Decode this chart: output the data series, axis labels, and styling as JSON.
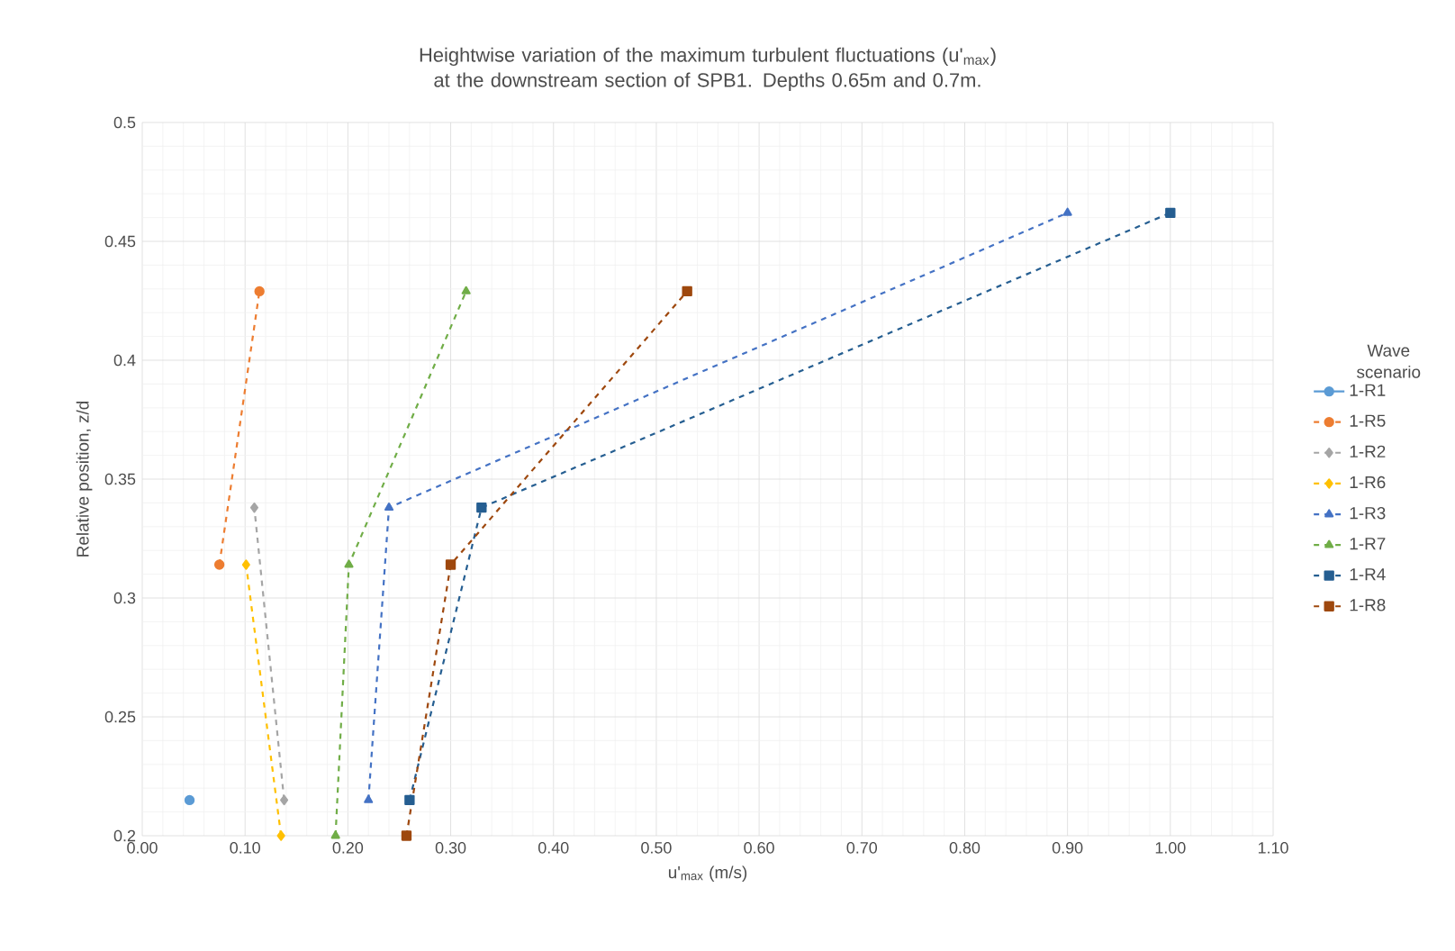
{
  "chart_data": {
    "type": "line",
    "title": "Heightwise variation of the maximum turbulent fluctuations (u'$_{max}$) at the downstream section of SPB1. Depths 0.65m and 0.7m.",
    "xlabel": "u'$_{max}$ (m/s)",
    "ylabel": "Relative position, z/d",
    "legend_title": "Wave scenario",
    "legend": "right",
    "grid": true,
    "xlim": [
      0,
      1.1
    ],
    "ylim": [
      0.2,
      0.5
    ],
    "xticks": [
      {
        "value": 0,
        "label": "0.00"
      },
      {
        "value": 0.1,
        "label": "0.10"
      },
      {
        "value": 0.2,
        "label": "0.20"
      },
      {
        "value": 0.3,
        "label": "0.30"
      },
      {
        "value": 0.4,
        "label": "0.40"
      },
      {
        "value": 0.5,
        "label": "0.50"
      },
      {
        "value": 0.6,
        "label": "0.60"
      },
      {
        "value": 0.7,
        "label": "0.70"
      },
      {
        "value": 0.8,
        "label": "0.80"
      },
      {
        "value": 0.9,
        "label": "0.90"
      },
      {
        "value": 1.0,
        "label": "1.00"
      },
      {
        "value": 1.1,
        "label": "1.10"
      }
    ],
    "yticks": [
      0.2,
      0.25,
      0.3,
      0.35,
      0.4,
      0.45,
      0.5
    ],
    "series": [
      {
        "name": "1-R1",
        "color": "#5b9bd5",
        "marker": "circle",
        "line_style": "solid",
        "x": [
          0.046
        ],
        "values": [
          0.215
        ]
      },
      {
        "name": "1-R5",
        "color": "#ed7d31",
        "marker": "circle",
        "line_style": "dashed",
        "x": [
          0.075,
          0.114
        ],
        "values": [
          0.314,
          0.429
        ]
      },
      {
        "name": "1-R2",
        "color": "#a5a5a5",
        "marker": "diamond",
        "line_style": "dashed",
        "x": [
          0.138,
          0.109
        ],
        "values": [
          0.215,
          0.338
        ]
      },
      {
        "name": "1-R6",
        "color": "#ffc000",
        "marker": "diamond",
        "line_style": "dashed",
        "x": [
          0.135,
          0.101
        ],
        "values": [
          0.2,
          0.314
        ]
      },
      {
        "name": "1-R3",
        "color": "#4472c4",
        "marker": "triangle",
        "line_style": "dashed",
        "x": [
          0.22,
          0.24,
          0.9
        ],
        "values": [
          0.215,
          0.338,
          0.462
        ]
      },
      {
        "name": "1-R7",
        "color": "#70ad47",
        "marker": "triangle",
        "line_style": "dashed",
        "x": [
          0.188,
          0.201,
          0.315
        ],
        "values": [
          0.2,
          0.314,
          0.429
        ]
      },
      {
        "name": "1-R4",
        "color": "#255e91",
        "marker": "square",
        "line_style": "dashed",
        "x": [
          0.26,
          0.33,
          1.0
        ],
        "values": [
          0.215,
          0.338,
          0.462
        ]
      },
      {
        "name": "1-R8",
        "color": "#9e480e",
        "marker": "square",
        "line_style": "dashed",
        "x": [
          0.257,
          0.3,
          0.53
        ],
        "values": [
          0.2,
          0.314,
          0.429
        ]
      }
    ]
  }
}
